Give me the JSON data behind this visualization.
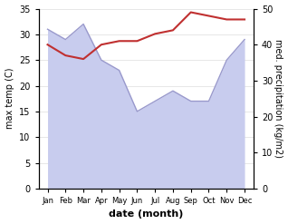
{
  "months": [
    "Jan",
    "Feb",
    "Mar",
    "Apr",
    "May",
    "Jun",
    "Jul",
    "Aug",
    "Sep",
    "Oct",
    "Nov",
    "Dec"
  ],
  "x": [
    0,
    1,
    2,
    3,
    4,
    5,
    6,
    7,
    8,
    9,
    10,
    11
  ],
  "max_temp": [
    31,
    29,
    32,
    25,
    23,
    15,
    17,
    19,
    17,
    17,
    25,
    29
  ],
  "precipitation": [
    40,
    37,
    36,
    40,
    41,
    41,
    43,
    44,
    49,
    48,
    47,
    47
  ],
  "temp_color": "#9999cc",
  "temp_fill_color": "#c8ccee",
  "precip_color": "#c03030",
  "left_ylabel": "max temp (C)",
  "right_ylabel": "med. precipitation (kg/m2)",
  "xlabel": "date (month)",
  "ylim_left": [
    0,
    35
  ],
  "ylim_right": [
    0,
    50
  ],
  "yticks_left": [
    0,
    5,
    10,
    15,
    20,
    25,
    30,
    35
  ],
  "yticks_right": [
    0,
    10,
    20,
    30,
    40,
    50
  ],
  "bg_color": "#ffffff",
  "fig_width": 3.18,
  "fig_height": 2.47,
  "dpi": 100
}
